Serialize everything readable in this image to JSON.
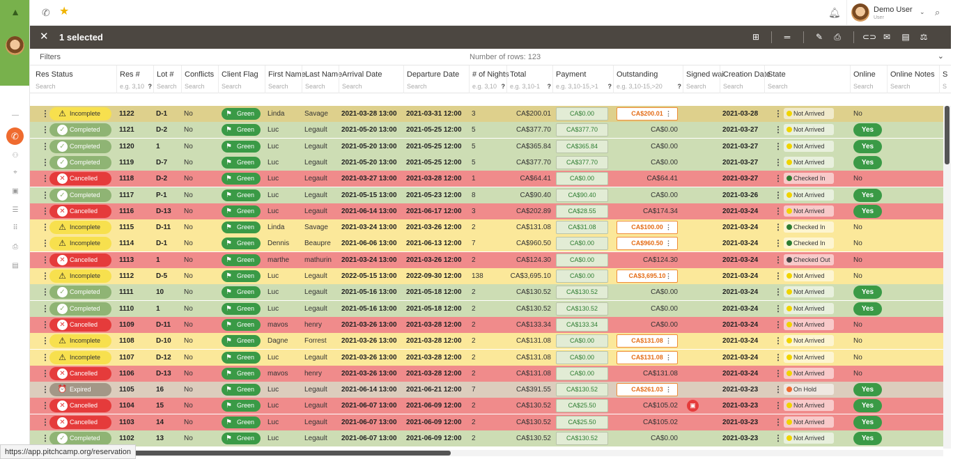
{
  "header": {
    "user_name": "Demo User",
    "user_role": "User"
  },
  "selection": {
    "title": "1 selected"
  },
  "filters": {
    "label": "Filters",
    "rows_label": "Number of rows: 123"
  },
  "columns": [
    {
      "title": "Res Status",
      "search": "Search",
      "help": ""
    },
    {
      "title": "Res #",
      "search": "e.g. 3,10",
      "help": "?"
    },
    {
      "title": "Lot #",
      "search": "Search",
      "help": ""
    },
    {
      "title": "Conflicts",
      "search": "Search",
      "help": ""
    },
    {
      "title": "Client Flag",
      "search": "Search",
      "help": ""
    },
    {
      "title": "First Name",
      "search": "Search",
      "help": ""
    },
    {
      "title": "Last Name",
      "search": "Search",
      "help": ""
    },
    {
      "title": "Arrival Date",
      "search": "Search",
      "help": ""
    },
    {
      "title": "Departure Date",
      "search": "Search",
      "help": ""
    },
    {
      "title": "# of Nights",
      "search": "e.g. 3,10",
      "help": "?"
    },
    {
      "title": "Total",
      "search": "e.g. 3,10-1",
      "help": "?"
    },
    {
      "title": "Payment",
      "search": "e.g. 3,10-15,>1",
      "help": "?"
    },
    {
      "title": "Outstanding",
      "search": "e.g. 3,10-15,>20",
      "help": "?"
    },
    {
      "title": "Signed wai",
      "search": "Search",
      "help": ""
    },
    {
      "title": "Creation Date",
      "search": "Search",
      "help": ""
    },
    {
      "title": "State",
      "search": "Search",
      "help": ""
    },
    {
      "title": "Online",
      "search": "Search",
      "help": ""
    },
    {
      "title": "Online Notes",
      "search": "Search",
      "help": ""
    },
    {
      "title": "S",
      "search": "S",
      "help": ""
    }
  ],
  "flag_label": "Green",
  "status_colors": {
    "Not Arrived": "#f0d400",
    "Checked In": "#2e7d32",
    "Checked Out": "#444444",
    "On Hold": "#ef6b2f"
  },
  "rows": [
    {
      "cls": "incomplete sel",
      "status": "Incomplete",
      "res": "1122",
      "lot": "D-1",
      "conflicts": "No",
      "first": "Linda",
      "last": "Savage",
      "arrival": "2021-03-28 13:00",
      "departure": "2021-03-31 12:00",
      "nights": "3",
      "total": "CA$200.01",
      "payment": "CA$0.00",
      "outstanding": "CA$200.01",
      "out_box": true,
      "note": false,
      "created": "2021-03-28",
      "state": "Not Arrived",
      "online": "No"
    },
    {
      "cls": "completed",
      "status": "Completed",
      "res": "1121",
      "lot": "D-2",
      "conflicts": "No",
      "first": "Luc",
      "last": "Legault",
      "arrival": "2021-05-20 13:00",
      "departure": "2021-05-25 12:00",
      "nights": "5",
      "total": "CA$377.70",
      "payment": "CA$377.70",
      "outstanding": "CA$0.00",
      "out_box": false,
      "note": false,
      "created": "2021-03-27",
      "state": "Not Arrived",
      "online": "Yes"
    },
    {
      "cls": "completed",
      "status": "Completed",
      "res": "1120",
      "lot": "1",
      "conflicts": "No",
      "first": "Luc",
      "last": "Legault",
      "arrival": "2021-05-20 13:00",
      "departure": "2021-05-25 12:00",
      "nights": "5",
      "total": "CA$365.84",
      "payment": "CA$365.84",
      "outstanding": "CA$0.00",
      "out_box": false,
      "note": false,
      "created": "2021-03-27",
      "state": "Not Arrived",
      "online": "Yes"
    },
    {
      "cls": "completed",
      "status": "Completed",
      "res": "1119",
      "lot": "D-7",
      "conflicts": "No",
      "first": "Luc",
      "last": "Legault",
      "arrival": "2021-05-20 13:00",
      "departure": "2021-05-25 12:00",
      "nights": "5",
      "total": "CA$377.70",
      "payment": "CA$377.70",
      "outstanding": "CA$0.00",
      "out_box": false,
      "note": false,
      "created": "2021-03-27",
      "state": "Not Arrived",
      "online": "Yes"
    },
    {
      "cls": "cancelled",
      "status": "Cancelled",
      "res": "1118",
      "lot": "D-2",
      "conflicts": "No",
      "first": "Luc",
      "last": "Legault",
      "arrival": "2021-03-27 13:00",
      "departure": "2021-03-28 12:00",
      "nights": "1",
      "total": "CA$64.41",
      "payment": "CA$0.00",
      "outstanding": "CA$64.41",
      "out_box": false,
      "note": false,
      "created": "2021-03-27",
      "state": "Checked In",
      "online": "No"
    },
    {
      "cls": "completed",
      "status": "Completed",
      "res": "1117",
      "lot": "P-1",
      "conflicts": "No",
      "first": "Luc",
      "last": "Legault",
      "arrival": "2021-05-15 13:00",
      "departure": "2021-05-23 12:00",
      "nights": "8",
      "total": "CA$90.40",
      "payment": "CA$90.40",
      "outstanding": "CA$0.00",
      "out_box": false,
      "note": false,
      "created": "2021-03-26",
      "state": "Not Arrived",
      "online": "Yes"
    },
    {
      "cls": "cancelled",
      "status": "Cancelled",
      "res": "1116",
      "lot": "D-13",
      "conflicts": "No",
      "first": "Luc",
      "last": "Legault",
      "arrival": "2021-06-14 13:00",
      "departure": "2021-06-17 12:00",
      "nights": "3",
      "total": "CA$202.89",
      "payment": "CA$28.55",
      "outstanding": "CA$174.34",
      "out_box": false,
      "note": false,
      "created": "2021-03-24",
      "state": "Not Arrived",
      "online": "Yes"
    },
    {
      "cls": "incomplete",
      "status": "Incomplete",
      "res": "1115",
      "lot": "D-11",
      "conflicts": "No",
      "first": "Linda",
      "last": "Savage",
      "arrival": "2021-03-24 13:00",
      "departure": "2021-03-26 12:00",
      "nights": "2",
      "total": "CA$131.08",
      "payment": "CA$31.08",
      "outstanding": "CA$100.00",
      "out_box": true,
      "note": false,
      "created": "2021-03-24",
      "state": "Checked In",
      "online": "No"
    },
    {
      "cls": "incomplete",
      "status": "Incomplete",
      "res": "1114",
      "lot": "D-1",
      "conflicts": "No",
      "first": "Dennis",
      "last": "Beaupre",
      "arrival": "2021-06-06 13:00",
      "departure": "2021-06-13 12:00",
      "nights": "7",
      "total": "CA$960.50",
      "payment": "CA$0.00",
      "outstanding": "CA$960.50",
      "out_box": true,
      "note": false,
      "created": "2021-03-24",
      "state": "Checked In",
      "online": "No"
    },
    {
      "cls": "cancelled",
      "status": "Cancelled",
      "res": "1113",
      "lot": "1",
      "conflicts": "No",
      "first": "marthe",
      "last": "mathurin",
      "arrival": "2021-03-24 13:00",
      "departure": "2021-03-26 12:00",
      "nights": "2",
      "total": "CA$124.30",
      "payment": "CA$0.00",
      "outstanding": "CA$124.30",
      "out_box": false,
      "note": false,
      "created": "2021-03-24",
      "state": "Checked Out",
      "online": "No"
    },
    {
      "cls": "incomplete",
      "status": "Incomplete",
      "res": "1112",
      "lot": "D-5",
      "conflicts": "No",
      "first": "Luc",
      "last": "Legault",
      "arrival": "2022-05-15 13:00",
      "departure": "2022-09-30 12:00",
      "nights": "138",
      "total": "CA$3,695.10",
      "payment": "CA$0.00",
      "outstanding": "CA$3,695.10",
      "out_box": true,
      "note": false,
      "created": "2021-03-24",
      "state": "Not Arrived",
      "online": "No"
    },
    {
      "cls": "completed",
      "status": "Completed",
      "res": "1111",
      "lot": "10",
      "conflicts": "No",
      "first": "Luc",
      "last": "Legault",
      "arrival": "2021-05-16 13:00",
      "departure": "2021-05-18 12:00",
      "nights": "2",
      "total": "CA$130.52",
      "payment": "CA$130.52",
      "outstanding": "CA$0.00",
      "out_box": false,
      "note": false,
      "created": "2021-03-24",
      "state": "Not Arrived",
      "online": "Yes"
    },
    {
      "cls": "completed",
      "status": "Completed",
      "res": "1110",
      "lot": "1",
      "conflicts": "No",
      "first": "Luc",
      "last": "Legault",
      "arrival": "2021-05-16 13:00",
      "departure": "2021-05-18 12:00",
      "nights": "2",
      "total": "CA$130.52",
      "payment": "CA$130.52",
      "outstanding": "CA$0.00",
      "out_box": false,
      "note": false,
      "created": "2021-03-24",
      "state": "Not Arrived",
      "online": "Yes"
    },
    {
      "cls": "cancelled",
      "status": "Cancelled",
      "res": "1109",
      "lot": "D-11",
      "conflicts": "No",
      "first": "mavos",
      "last": "henry",
      "arrival": "2021-03-26 13:00",
      "departure": "2021-03-28 12:00",
      "nights": "2",
      "total": "CA$133.34",
      "payment": "CA$133.34",
      "outstanding": "CA$0.00",
      "out_box": false,
      "note": false,
      "created": "2021-03-24",
      "state": "Not Arrived",
      "online": "No"
    },
    {
      "cls": "incomplete",
      "status": "Incomplete",
      "res": "1108",
      "lot": "D-10",
      "conflicts": "No",
      "first": "Dagne",
      "last": "Forrest",
      "arrival": "2021-03-26 13:00",
      "departure": "2021-03-28 12:00",
      "nights": "2",
      "total": "CA$131.08",
      "payment": "CA$0.00",
      "outstanding": "CA$131.08",
      "out_box": true,
      "note": false,
      "created": "2021-03-24",
      "state": "Not Arrived",
      "online": "No"
    },
    {
      "cls": "incomplete",
      "status": "Incomplete",
      "res": "1107",
      "lot": "D-12",
      "conflicts": "No",
      "first": "Luc",
      "last": "Legault",
      "arrival": "2021-03-26 13:00",
      "departure": "2021-03-28 12:00",
      "nights": "2",
      "total": "CA$131.08",
      "payment": "CA$0.00",
      "outstanding": "CA$131.08",
      "out_box": true,
      "note": false,
      "created": "2021-03-24",
      "state": "Not Arrived",
      "online": "No"
    },
    {
      "cls": "cancelled",
      "status": "Cancelled",
      "res": "1106",
      "lot": "D-13",
      "conflicts": "No",
      "first": "mavos",
      "last": "henry",
      "arrival": "2021-03-26 13:00",
      "departure": "2021-03-28 12:00",
      "nights": "2",
      "total": "CA$131.08",
      "payment": "CA$0.00",
      "outstanding": "CA$131.08",
      "out_box": false,
      "note": false,
      "created": "2021-03-24",
      "state": "Not Arrived",
      "online": "No"
    },
    {
      "cls": "expired",
      "status": "Expired",
      "res": "1105",
      "lot": "16",
      "conflicts": "No",
      "first": "Luc",
      "last": "Legault",
      "arrival": "2021-06-14 13:00",
      "departure": "2021-06-21 12:00",
      "nights": "7",
      "total": "CA$391.55",
      "payment": "CA$130.52",
      "outstanding": "CA$261.03",
      "out_box": true,
      "note": false,
      "created": "2021-03-23",
      "state": "On Hold",
      "online": "Yes"
    },
    {
      "cls": "cancelled",
      "status": "Cancelled",
      "res": "1104",
      "lot": "15",
      "conflicts": "No",
      "first": "Luc",
      "last": "Legault",
      "arrival": "2021-06-07 13:00",
      "departure": "2021-06-09 12:00",
      "nights": "2",
      "total": "CA$130.52",
      "payment": "CA$25.50",
      "outstanding": "CA$105.02",
      "out_box": false,
      "note": true,
      "created": "2021-03-23",
      "state": "Not Arrived",
      "online": "Yes"
    },
    {
      "cls": "cancelled",
      "status": "Cancelled",
      "res": "1103",
      "lot": "14",
      "conflicts": "No",
      "first": "Luc",
      "last": "Legault",
      "arrival": "2021-06-07 13:00",
      "departure": "2021-06-09 12:00",
      "nights": "2",
      "total": "CA$130.52",
      "payment": "CA$25.50",
      "outstanding": "CA$105.02",
      "out_box": false,
      "note": false,
      "created": "2021-03-23",
      "state": "Not Arrived",
      "online": "Yes"
    },
    {
      "cls": "completed",
      "status": "Completed",
      "res": "1102",
      "lot": "13",
      "conflicts": "No",
      "first": "Luc",
      "last": "Legault",
      "arrival": "2021-06-07 13:00",
      "departure": "2021-06-09 12:00",
      "nights": "2",
      "total": "CA$130.52",
      "payment": "CA$130.52",
      "outstanding": "CA$0.00",
      "out_box": false,
      "note": false,
      "created": "2021-03-23",
      "state": "Not Arrived",
      "online": "Yes"
    }
  ],
  "status_url": "https://app.pitchcamp.org/reservation"
}
